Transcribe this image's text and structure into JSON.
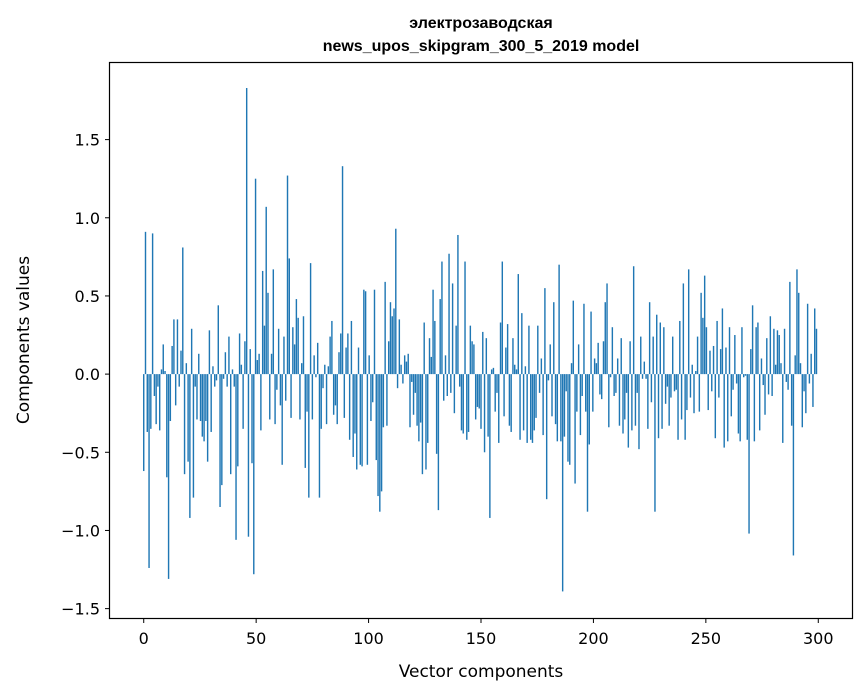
{
  "chart_data": {
    "type": "bar",
    "title": "электрозаводская",
    "subtitle": "news_upos_skipgram_300_5_2019 model",
    "xlabel": "Vector components",
    "ylabel": "Components values",
    "xlim": [
      -15,
      315
    ],
    "ylim": [
      -1.56,
      1.99
    ],
    "xticks": [
      0,
      50,
      100,
      150,
      200,
      250,
      300
    ],
    "xtick_labels": [
      "0",
      "50",
      "100",
      "150",
      "200",
      "250",
      "300"
    ],
    "yticks": [
      -1.5,
      -1.0,
      -0.5,
      0.0,
      0.5,
      1.0,
      1.5
    ],
    "ytick_labels": [
      "−1.5",
      "−1.0",
      "−0.5",
      "0.0",
      "0.5",
      "1.0",
      "1.5"
    ],
    "grid": false,
    "bar_color": "#1f77b4",
    "values": [
      -0.62,
      0.91,
      -0.37,
      -1.24,
      -0.35,
      0.9,
      -0.14,
      -0.32,
      -0.08,
      -0.36,
      0.03,
      0.19,
      0.02,
      -0.66,
      -1.31,
      -0.3,
      0.18,
      0.35,
      -0.2,
      0.35,
      -0.08,
      0.15,
      0.81,
      -0.64,
      0.07,
      -0.56,
      -0.92,
      0.29,
      -0.79,
      -0.08,
      -0.29,
      0.13,
      -0.3,
      -0.4,
      -0.43,
      -0.3,
      -0.56,
      0.28,
      -0.37,
      0.05,
      -0.08,
      -0.04,
      0.44,
      -0.85,
      -0.71,
      -0.03,
      0.14,
      -0.08,
      0.24,
      -0.64,
      0.03,
      -0.08,
      -1.06,
      -0.59,
      0.26,
      0.06,
      -0.35,
      0.21,
      1.83,
      -1.04,
      0.16,
      -0.57,
      -1.28,
      1.25,
      0.09,
      0.13,
      -0.36,
      0.66,
      0.31,
      1.07,
      0.52,
      -0.29,
      0.13,
      0.67,
      -0.32,
      -0.1,
      0.29,
      -0.2,
      -0.58,
      0.24,
      -0.17,
      1.27,
      0.74,
      -0.28,
      0.3,
      0.19,
      0.48,
      0.36,
      -0.29,
      0.07,
      0.37,
      -0.6,
      -0.24,
      -0.79,
      0.71,
      -0.29,
      0.12,
      -0.02,
      0.2,
      -0.79,
      -0.35,
      -0.09,
      0.06,
      -0.32,
      0.05,
      0.24,
      0.34,
      -0.26,
      -0.2,
      -0.32,
      0.14,
      0.26,
      1.33,
      -0.28,
      0.17,
      0.26,
      -0.42,
      0.34,
      -0.53,
      -0.38,
      -0.61,
      0.17,
      -0.58,
      -0.59,
      0.54,
      0.53,
      -0.58,
      0.12,
      -0.3,
      -0.18,
      0.54,
      -0.55,
      -0.78,
      -0.88,
      -0.75,
      -0.34,
      0.59,
      -0.33,
      0.21,
      0.46,
      0.37,
      0.42,
      0.93,
      -0.09,
      0.35,
      0.06,
      -0.06,
      0.12,
      0.08,
      0.13,
      -0.34,
      -0.05,
      -0.26,
      -0.12,
      -0.33,
      -0.43,
      -0.31,
      -0.64,
      0.33,
      -0.61,
      -0.44,
      0.23,
      0.11,
      0.54,
      0.34,
      -0.51,
      -0.87,
      0.48,
      0.72,
      -0.17,
      0.12,
      -0.14,
      0.77,
      -0.12,
      0.58,
      -0.25,
      0.31,
      0.89,
      -0.08,
      -0.36,
      -0.38,
      0.72,
      -0.42,
      -0.37,
      0.31,
      0.21,
      0.19,
      -0.29,
      -0.21,
      -0.22,
      -0.35,
      0.27,
      -0.5,
      0.23,
      -0.4,
      -0.92,
      0.03,
      0.04,
      -0.24,
      -0.12,
      -0.44,
      0.33,
      0.72,
      -0.27,
      0.17,
      0.32,
      -0.33,
      -0.37,
      0.23,
      0.06,
      0.03,
      0.64,
      -0.42,
      0.39,
      -0.36,
      0.05,
      -0.44,
      0.31,
      -0.42,
      -0.44,
      -0.36,
      -0.28,
      0.31,
      -0.12,
      0.1,
      -0.39,
      0.55,
      -0.8,
      -0.04,
      0.19,
      -0.27,
      0.46,
      -0.32,
      -0.43,
      0.7,
      -0.43,
      -1.39,
      -0.4,
      -0.11,
      -0.56,
      -0.58,
      0.07,
      0.47,
      -0.7,
      -0.24,
      0.19,
      -0.39,
      -0.14,
      0.45,
      -0.24,
      -0.88,
      -0.45,
      0.4,
      -0.24,
      0.1,
      0.07,
      0.2,
      -0.13,
      -0.16,
      0.21,
      0.46,
      0.58,
      -0.34,
      -0.02,
      0.3,
      -0.14,
      -0.12,
      0.1,
      -0.33,
      0.23,
      -0.38,
      -0.29,
      -0.12,
      -0.47,
      0.21,
      -0.36,
      0.69,
      -0.33,
      -0.12,
      -0.48,
      0.24,
      -0.03,
      0.08,
      -0.03,
      -0.35,
      0.46,
      -0.18,
      0.24,
      -0.88,
      0.38,
      -0.41,
      0.33,
      -0.35,
      0.3,
      -0.19,
      -0.08,
      -0.33,
      -0.15,
      0.24,
      -0.11,
      -0.1,
      -0.42,
      0.34,
      -0.29,
      0.58,
      -0.42,
      -0.23,
      0.67,
      -0.15,
      0.06,
      -0.25,
      0.02,
      0.24,
      -0.24,
      0.52,
      0.36,
      0.63,
      0.3,
      -0.23,
      0.15,
      -0.11,
      0.18,
      -0.41,
      0.34,
      -0.15,
      0.16,
      0.42,
      -0.47,
      0.17,
      -0.43,
      0.3,
      -0.27,
      -0.1,
      0.25,
      -0.06,
      -0.38,
      -0.43,
      0.3,
      -0.02,
      -0.01,
      -0.42,
      -1.02,
      0.16,
      0.44,
      -0.43,
      0.3,
      0.33,
      -0.36,
      0.1,
      -0.07,
      -0.26,
      0.23,
      -0.13,
      0.37,
      -0.14,
      0.29,
      0.06,
      0.28,
      0.25,
      0.07,
      -0.44,
      0.29,
      -0.05,
      -0.1,
      0.59,
      -0.33,
      -1.16,
      0.12,
      0.67,
      0.52,
      0.07,
      -0.34,
      -0.11,
      -0.25,
      0.45,
      -0.06,
      0.13,
      -0.21,
      0.42,
      0.29
    ]
  }
}
